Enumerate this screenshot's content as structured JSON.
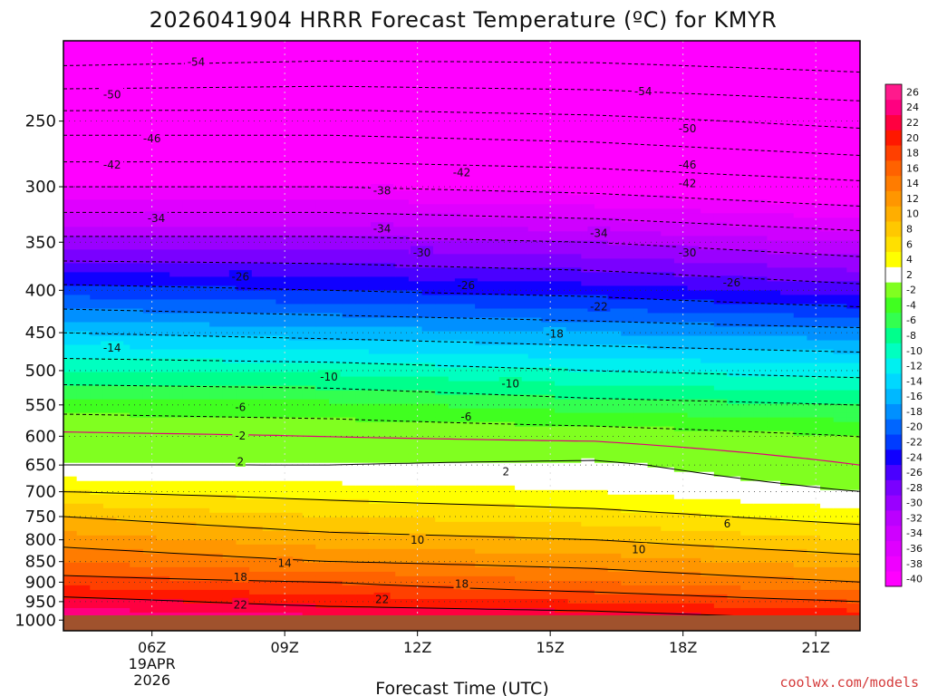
{
  "chart_data": {
    "type": "heatmap",
    "title": "2026041904 HRRR Forecast Temperature (ºC) for KMYR",
    "xlabel": "Forecast Time (UTC)",
    "ylabel": "",
    "credit": "coolwx.com/models",
    "x_range_hours": [
      4,
      22
    ],
    "x_ticks": [
      {
        "hour": 6,
        "label": "06Z",
        "date_line1": "19APR",
        "date_line2": "2026"
      },
      {
        "hour": 9,
        "label": "09Z"
      },
      {
        "hour": 12,
        "label": "12Z"
      },
      {
        "hour": 15,
        "label": "15Z"
      },
      {
        "hour": 18,
        "label": "18Z"
      },
      {
        "hour": 21,
        "label": "21Z"
      }
    ],
    "y_axis": "pressure (hPa), log scale, inverted",
    "y_range": [
      200,
      1030
    ],
    "y_ticks": [
      250,
      300,
      350,
      400,
      450,
      500,
      550,
      600,
      650,
      700,
      750,
      800,
      850,
      900,
      950,
      1000
    ],
    "grid": "dotted",
    "colorbar": {
      "levels": [
        -40,
        -38,
        -36,
        -34,
        -32,
        -30,
        -28,
        -26,
        -24,
        -22,
        -20,
        -18,
        -16,
        -14,
        -12,
        -10,
        -8,
        -6,
        -4,
        -2,
        2,
        4,
        6,
        8,
        10,
        12,
        14,
        16,
        18,
        20,
        22,
        24,
        26
      ],
      "colors": [
        "#ff00ff",
        "#ef00ff",
        "#df00ff",
        "#cf00ff",
        "#bb00ff",
        "#9a00ff",
        "#7a00ff",
        "#4a00ff",
        "#1000ff",
        "#003cff",
        "#0066ff",
        "#0090ff",
        "#00b8ff",
        "#00d8ff",
        "#00f0f0",
        "#00ffc0",
        "#00ff8c",
        "#33ff50",
        "#40ff20",
        "#80ff20",
        "#ffffff",
        "#ffff00",
        "#ffe000",
        "#ffc800",
        "#ffae00",
        "#ff9600",
        "#ff7c00",
        "#ff6200",
        "#ff4000",
        "#ff1800",
        "#ff0040",
        "#ff0080",
        "#ff1a8c"
      ]
    },
    "temperature_profiles": {
      "hours": [
        4,
        10,
        16,
        22
      ],
      "pressures": [
        200,
        250,
        300,
        350,
        400,
        450,
        500,
        550,
        600,
        650,
        700,
        750,
        800,
        850,
        900,
        950,
        1000
      ],
      "values": [
        [
          -62,
          -61,
          -61,
          -62
        ],
        [
          -48,
          -48,
          -49,
          -51
        ],
        [
          -38,
          -38,
          -39,
          -41
        ],
        [
          -29,
          -29,
          -30,
          -32
        ],
        [
          -21,
          -22,
          -23,
          -25
        ],
        [
          -14,
          -15,
          -16,
          -17
        ],
        [
          -8,
          -8.5,
          -10,
          -11
        ],
        [
          -3,
          -3.5,
          -5,
          -6
        ],
        [
          0.5,
          0,
          -0.5,
          -2
        ],
        [
          2,
          2,
          2.5,
          0
        ],
        [
          6,
          5,
          4,
          2
        ],
        [
          10,
          8,
          7,
          5
        ],
        [
          13,
          11,
          10,
          8
        ],
        [
          16,
          14,
          13,
          11
        ],
        [
          19,
          18,
          16,
          14
        ],
        [
          23,
          21,
          20,
          18
        ],
        [
          26,
          25,
          24,
          22
        ]
      ]
    },
    "contour_labels": [
      {
        "text": "-54",
        "hour": 7.0,
        "pressure": 212
      },
      {
        "text": "-54",
        "hour": 17.1,
        "pressure": 230
      },
      {
        "text": "-50",
        "hour": 5.1,
        "pressure": 232
      },
      {
        "text": "-50",
        "hour": 18.1,
        "pressure": 255
      },
      {
        "text": "-46",
        "hour": 6.0,
        "pressure": 262
      },
      {
        "text": "-46",
        "hour": 18.1,
        "pressure": 282
      },
      {
        "text": "-42",
        "hour": 5.1,
        "pressure": 282
      },
      {
        "text": "-42",
        "hour": 13.0,
        "pressure": 288
      },
      {
        "text": "-42",
        "hour": 18.1,
        "pressure": 297
      },
      {
        "text": "-38",
        "hour": 11.2,
        "pressure": 303
      },
      {
        "text": "-34",
        "hour": 6.1,
        "pressure": 327
      },
      {
        "text": "-34",
        "hour": 11.2,
        "pressure": 337
      },
      {
        "text": "-34",
        "hour": 16.1,
        "pressure": 341
      },
      {
        "text": "-30",
        "hour": 12.1,
        "pressure": 360
      },
      {
        "text": "-30",
        "hour": 18.1,
        "pressure": 360
      },
      {
        "text": "-26",
        "hour": 8.0,
        "pressure": 385
      },
      {
        "text": "-26",
        "hour": 13.1,
        "pressure": 394
      },
      {
        "text": "-26",
        "hour": 19.1,
        "pressure": 391
      },
      {
        "text": "-22",
        "hour": 16.1,
        "pressure": 418
      },
      {
        "text": "-18",
        "hour": 15.1,
        "pressure": 451
      },
      {
        "text": "-14",
        "hour": 5.1,
        "pressure": 469
      },
      {
        "text": "-10",
        "hour": 10.0,
        "pressure": 508
      },
      {
        "text": "-10",
        "hour": 14.1,
        "pressure": 518
      },
      {
        "text": "-6",
        "hour": 8.0,
        "pressure": 553
      },
      {
        "text": "-6",
        "hour": 13.1,
        "pressure": 568
      },
      {
        "text": "-2",
        "hour": 8.0,
        "pressure": 599
      },
      {
        "text": "2",
        "hour": 8.0,
        "pressure": 643
      },
      {
        "text": "2",
        "hour": 14.0,
        "pressure": 661
      },
      {
        "text": "6",
        "hour": 19.0,
        "pressure": 764
      },
      {
        "text": "10",
        "hour": 12.0,
        "pressure": 800
      },
      {
        "text": "10",
        "hour": 17.0,
        "pressure": 821
      },
      {
        "text": "14",
        "hour": 9.0,
        "pressure": 853
      },
      {
        "text": "18",
        "hour": 8.0,
        "pressure": 887
      },
      {
        "text": "18",
        "hour": 13.0,
        "pressure": 904
      },
      {
        "text": "22",
        "hour": 8.0,
        "pressure": 957
      },
      {
        "text": "22",
        "hour": 11.2,
        "pressure": 943
      }
    ]
  }
}
